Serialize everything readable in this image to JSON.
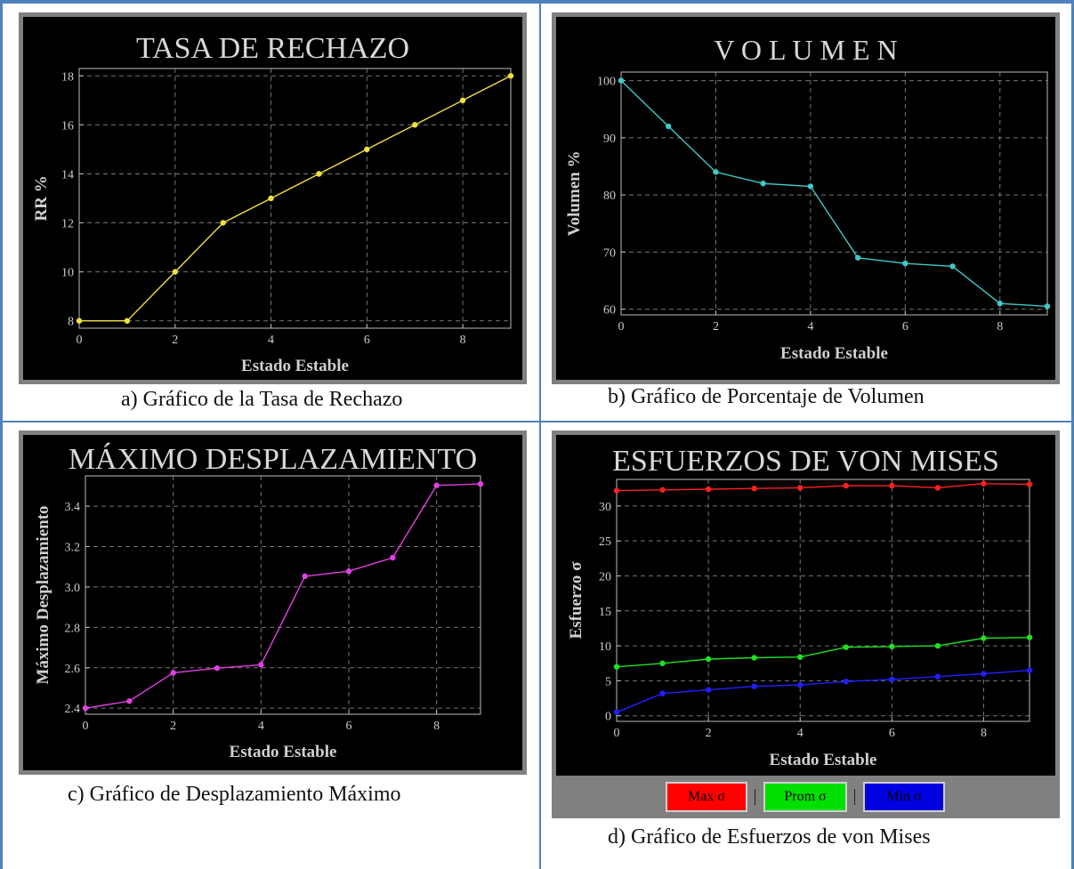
{
  "captions": {
    "a": "a)    Gráfico de la Tasa de Rechazo",
    "b": "b)    Gráfico de Porcentaje de Volumen",
    "c": "c)    Gráfico de Desplazamiento Máximo",
    "d": "d)    Gráfico de Esfuerzos de von Mises"
  },
  "legend_d": {
    "max_label": "Max σ",
    "prom_label": "Prom σ",
    "min_label": "Min σ",
    "colors": {
      "max": "#ff0000",
      "prom": "#00e000",
      "min": "#0000e0"
    }
  },
  "chart_data": [
    {
      "id": "rr",
      "type": "line",
      "title": "TASA   DE   RECHAZO",
      "xlabel": "Estado Estable",
      "ylabel": "RR %",
      "xlim": [
        0,
        9
      ],
      "ylim": [
        7.7,
        18.3
      ],
      "xticks": [
        0,
        2,
        4,
        6,
        8
      ],
      "yticks": [
        8,
        10,
        12,
        14,
        16,
        18
      ],
      "grid": true,
      "series": [
        {
          "color": "#f0e040",
          "x": [
            0,
            1,
            2,
            3,
            4,
            5,
            6,
            7,
            8,
            9
          ],
          "y": [
            8,
            8,
            10,
            12,
            13,
            14,
            15,
            16,
            17,
            18
          ]
        }
      ]
    },
    {
      "id": "vol",
      "type": "line",
      "title": "V O L U M E N",
      "xlabel": "Estado Estable",
      "ylabel": "Volumen %",
      "xlim": [
        0,
        9
      ],
      "ylim": [
        59,
        101.5
      ],
      "xticks": [
        0,
        2,
        4,
        6,
        8
      ],
      "yticks": [
        60,
        70,
        80,
        90,
        100
      ],
      "grid": true,
      "series": [
        {
          "color": "#40c8c8",
          "x": [
            0,
            1,
            2,
            3,
            4,
            5,
            6,
            7,
            8,
            9
          ],
          "y": [
            100,
            92,
            84,
            82,
            81.5,
            69,
            68,
            67.5,
            61,
            60.5
          ]
        }
      ]
    },
    {
      "id": "desp",
      "type": "line",
      "title": "MÁXIMO DESPLAZAMIENTO",
      "xlabel": "Estado Estable",
      "ylabel": "Máximo Desplazamiento",
      "xlim": [
        0,
        9
      ],
      "ylim": [
        2.37,
        3.55
      ],
      "xticks": [
        0,
        2,
        4,
        6,
        8
      ],
      "yticks": [
        "2.4",
        "2.6",
        "2.8",
        "3.0",
        "3.2",
        "3.4"
      ],
      "grid": true,
      "series": [
        {
          "color": "#e040e0",
          "x": [
            0,
            1,
            2,
            3,
            4,
            5,
            6,
            7,
            8,
            9
          ],
          "y": [
            2.4,
            2.435,
            2.575,
            2.598,
            2.615,
            3.053,
            3.078,
            3.145,
            3.503,
            3.51
          ]
        }
      ]
    },
    {
      "id": "vm",
      "type": "line",
      "title": "ESFUERZOS DE VON MISES",
      "xlabel": "Estado Estable",
      "ylabel": "Esfuerzo σ",
      "xlim": [
        0,
        9
      ],
      "ylim": [
        -0.8,
        33.8
      ],
      "xticks": [
        0,
        2,
        4,
        6,
        8
      ],
      "yticks": [
        0,
        5,
        10,
        15,
        20,
        25,
        30
      ],
      "grid": true,
      "legend": "bottom",
      "series": [
        {
          "name": "Max σ",
          "color": "#ff2020",
          "x": [
            0,
            1,
            2,
            3,
            4,
            5,
            6,
            7,
            8,
            9
          ],
          "y": [
            32.2,
            32.3,
            32.4,
            32.5,
            32.6,
            32.9,
            32.9,
            32.6,
            33.2,
            33.1
          ]
        },
        {
          "name": "Prom σ",
          "color": "#20e020",
          "x": [
            0,
            1,
            2,
            3,
            4,
            5,
            6,
            7,
            8,
            9
          ],
          "y": [
            7.0,
            7.5,
            8.1,
            8.3,
            8.4,
            9.8,
            9.9,
            10.0,
            11.1,
            11.2
          ]
        },
        {
          "name": "Min σ",
          "color": "#2020ff",
          "x": [
            0,
            1,
            2,
            3,
            4,
            5,
            6,
            7,
            8,
            9
          ],
          "y": [
            0.5,
            3.2,
            3.7,
            4.2,
            4.4,
            4.9,
            5.2,
            5.6,
            6.0,
            6.5
          ]
        }
      ]
    }
  ]
}
